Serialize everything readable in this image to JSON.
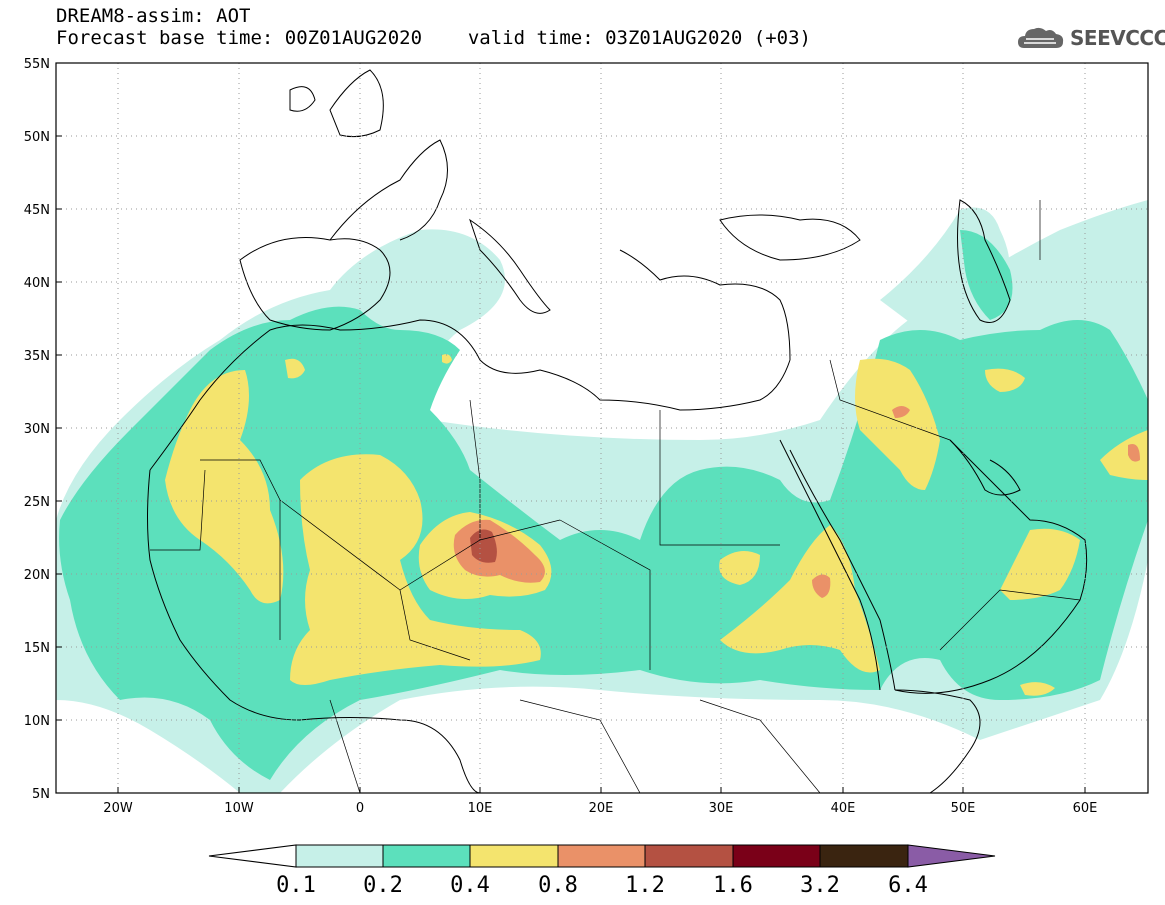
{
  "header": {
    "model_line": "DREAM8-assim: AOT",
    "forecast_base_label": "Forecast base time: 00Z01AUG2020",
    "valid_time_label": "valid time: 03Z01AUG2020 (+03)"
  },
  "logo": {
    "text": "SEEVCCC",
    "icon": "cloud-logo-icon"
  },
  "axes": {
    "lat_labels": [
      "55N",
      "50N",
      "45N",
      "40N",
      "35N",
      "30N",
      "25N",
      "20N",
      "15N",
      "10N",
      "5N"
    ],
    "lon_labels": [
      "20W",
      "10W",
      "0",
      "10E",
      "20E",
      "30E",
      "40E",
      "50E",
      "60E"
    ]
  },
  "colorbar": {
    "labels": [
      "0.1",
      "0.2",
      "0.4",
      "0.8",
      "1.2",
      "1.6",
      "3.2",
      "6.4"
    ],
    "colors": [
      "#c6f0e8",
      "#5ce0bc",
      "#f4e46e",
      "#ea9168",
      "#b45142",
      "#7a0018",
      "#3a2410",
      "#8a5ca6"
    ]
  },
  "map_colors": {
    "land_line": "#000000",
    "grid": "#9a9a9a",
    "aot_0_1": "#c6f0e8",
    "aot_0_2": "#5ce0bc",
    "aot_0_4": "#f4e46e",
    "aot_0_8": "#ea9168",
    "aot_1_2": "#b45142"
  }
}
